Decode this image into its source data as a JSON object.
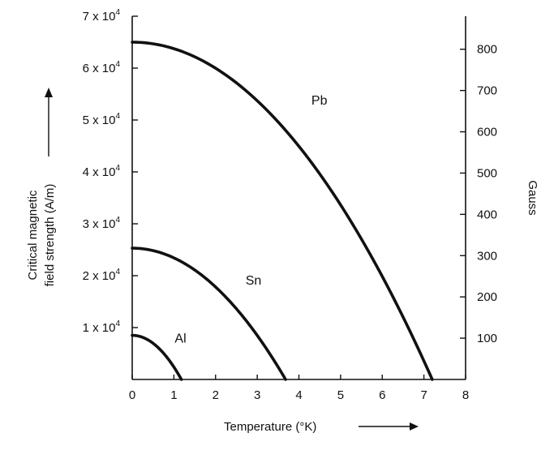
{
  "chart_data": {
    "type": "line",
    "xlabel": "Temperature (°K)",
    "ylabel_line1": "Critical magnetic",
    "ylabel_line2": "field strength (A/m)",
    "y2label": "Gauss",
    "xlim": [
      0,
      8
    ],
    "ylim": [
      0,
      70000
    ],
    "y2lim": [
      0,
      880
    ],
    "x_ticks": [
      {
        "value": 0,
        "label": "0"
      },
      {
        "value": 1,
        "label": "1"
      },
      {
        "value": 2,
        "label": "2"
      },
      {
        "value": 3,
        "label": "3"
      },
      {
        "value": 4,
        "label": "4"
      },
      {
        "value": 5,
        "label": "5"
      },
      {
        "value": 6,
        "label": "6"
      },
      {
        "value": 7,
        "label": "7"
      },
      {
        "value": 8,
        "label": "8"
      }
    ],
    "y_ticks": [
      {
        "value": 10000,
        "mantissa": "1 x 10",
        "exp": "4"
      },
      {
        "value": 20000,
        "mantissa": "2 x 10",
        "exp": "4"
      },
      {
        "value": 30000,
        "mantissa": "3 x 10",
        "exp": "4"
      },
      {
        "value": 40000,
        "mantissa": "4 x 10",
        "exp": "4"
      },
      {
        "value": 50000,
        "mantissa": "5 x 10",
        "exp": "4"
      },
      {
        "value": 60000,
        "mantissa": "6 x 10",
        "exp": "4"
      },
      {
        "value": 70000,
        "mantissa": "7 x 10",
        "exp": "4"
      }
    ],
    "y2_ticks": [
      {
        "value": 100,
        "label": "100"
      },
      {
        "value": 200,
        "label": "200"
      },
      {
        "value": 300,
        "label": "300"
      },
      {
        "value": 400,
        "label": "400"
      },
      {
        "value": 500,
        "label": "500"
      },
      {
        "value": 600,
        "label": "600"
      },
      {
        "value": 700,
        "label": "700"
      },
      {
        "value": 800,
        "label": "800"
      }
    ],
    "series": [
      {
        "name": "Pb",
        "H0": 65000,
        "Tc": 7.2,
        "label_at": [
          4.3,
          53000
        ]
      },
      {
        "name": "Sn",
        "H0": 25300,
        "Tc": 3.68,
        "label_at": [
          2.72,
          18300
        ]
      },
      {
        "name": "Al",
        "H0": 8500,
        "Tc": 1.18,
        "label_at": [
          1.02,
          7100
        ]
      }
    ],
    "grid": false,
    "legend": "none"
  }
}
